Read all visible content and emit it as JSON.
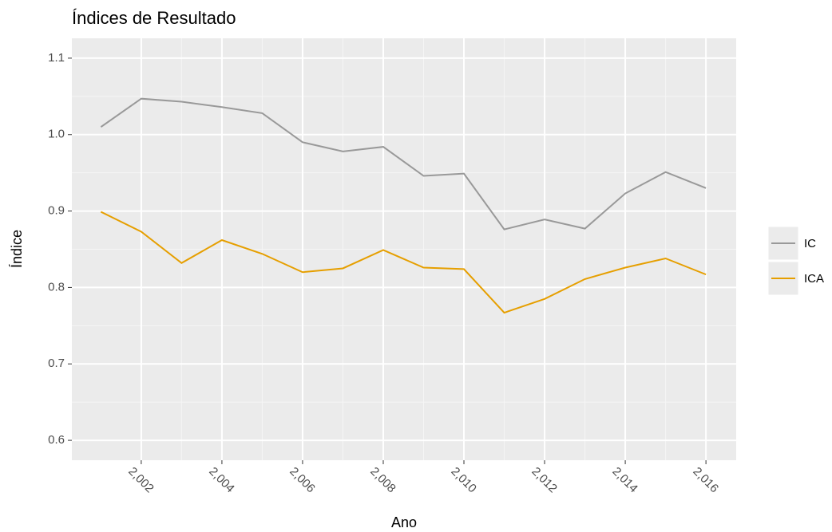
{
  "chart_data": {
    "type": "line",
    "title": "Índices de Resultado",
    "x_label": "Ano",
    "y_label": "Índice",
    "x": [
      2001,
      2002,
      2003,
      2004,
      2005,
      2006,
      2007,
      2008,
      2009,
      2010,
      2011,
      2012,
      2013,
      2014,
      2015,
      2016
    ],
    "series": [
      {
        "name": "IC",
        "color": "#999999",
        "values": [
          1.01,
          1.047,
          1.043,
          1.036,
          1.028,
          0.99,
          0.978,
          0.984,
          0.946,
          0.949,
          0.876,
          0.889,
          0.877,
          0.923,
          0.951,
          0.93
        ]
      },
      {
        "name": "ICA",
        "color": "#E69F00",
        "values": [
          0.899,
          0.873,
          0.832,
          0.862,
          0.844,
          0.82,
          0.825,
          0.849,
          0.826,
          0.824,
          0.767,
          0.785,
          0.811,
          0.826,
          0.838,
          0.817
        ]
      }
    ],
    "xlim": [
      2000.28,
      2016.75
    ],
    "xticks": [
      {
        "value": 2002,
        "label": "2,002"
      },
      {
        "value": 2004,
        "label": "2,004"
      },
      {
        "value": 2006,
        "label": "2,006"
      },
      {
        "value": 2008,
        "label": "2,008"
      },
      {
        "value": 2010,
        "label": "2,010"
      },
      {
        "value": 2012,
        "label": "2,012"
      },
      {
        "value": 2014,
        "label": "2,014"
      },
      {
        "value": 2016,
        "label": "2,016"
      }
    ],
    "ylim": [
      0.574,
      1.126
    ],
    "yticks": [
      0.6,
      0.7,
      0.8,
      0.9,
      {
        "value": 1,
        "label": "1.0"
      },
      1.1
    ],
    "grid": true,
    "legend": "right"
  }
}
